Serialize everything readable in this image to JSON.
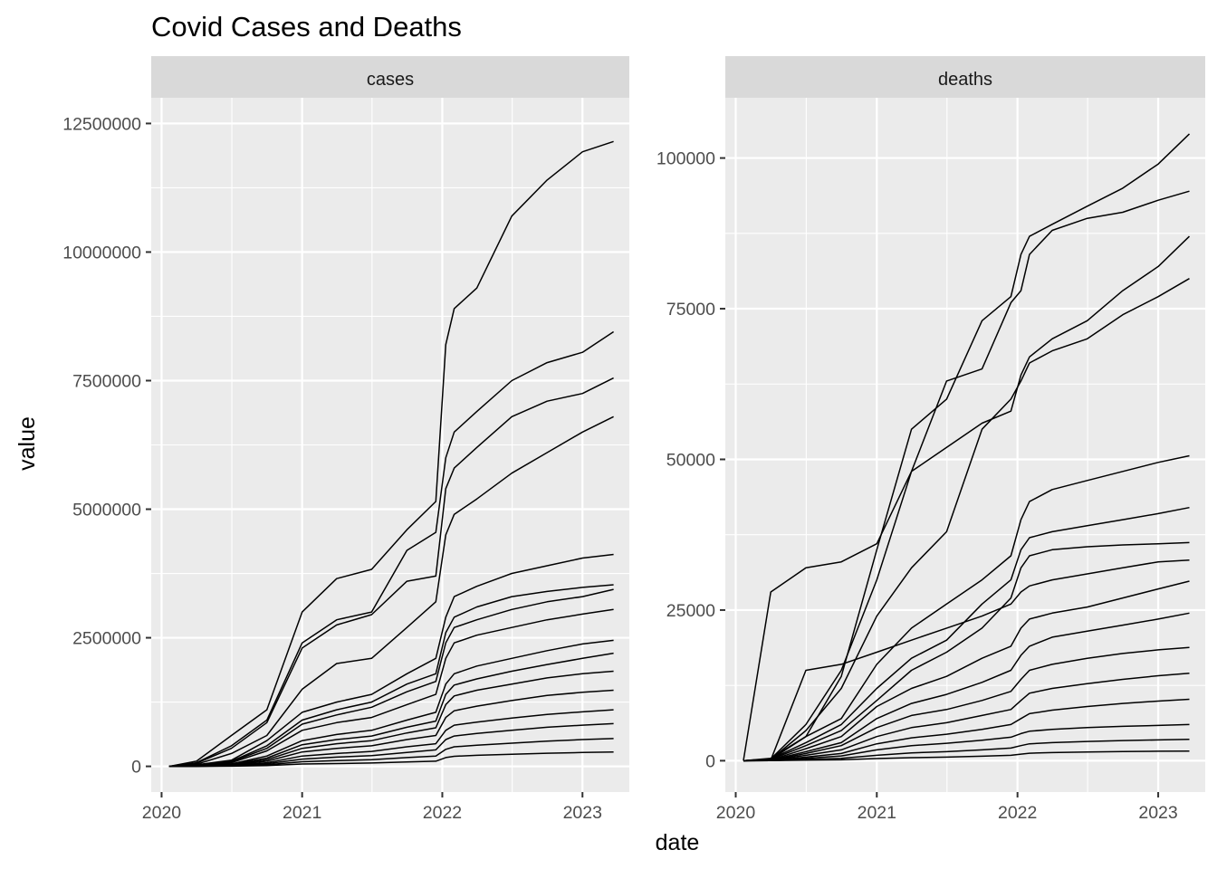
{
  "chart_data": {
    "type": "line",
    "title": "Covid Cases and Deaths",
    "xlabel": "date",
    "ylabel": "value",
    "x_tick_labels": [
      "2020",
      "2021",
      "2022",
      "2023"
    ],
    "grid": true,
    "legend": "none",
    "line_color": "#000000",
    "panel_background": "#ebebeb",
    "strip_background": "#d9d9d9",
    "series_count_note": "many overlapping series per panel; main trajectories estimated",
    "x_dates": [
      "2020-01-21",
      "2020-04-01",
      "2020-07-01",
      "2020-10-01",
      "2021-01-01",
      "2021-04-01",
      "2021-07-01",
      "2021-10-01",
      "2021-12-15",
      "2022-01-10",
      "2022-02-01",
      "2022-04-01",
      "2022-07-01",
      "2022-10-01",
      "2023-01-01",
      "2023-03-23"
    ],
    "panels": [
      {
        "strip": "cases",
        "ylim": [
          -500000,
          13000000
        ],
        "y_ticks": [
          0,
          2500000,
          5000000,
          7500000,
          10000000,
          12500000
        ],
        "y_tick_labels": [
          "0",
          "2500000",
          "5000000",
          "7500000",
          "10000000",
          "12500000"
        ],
        "series": [
          {
            "values": [
              0,
              100000,
              600000,
              1100000,
              3000000,
              3650000,
              3830000,
              4600000,
              5150000,
              8200000,
              8900000,
              9300000,
              10700000,
              11400000,
              11950000,
              12150000
            ]
          },
          {
            "values": [
              0,
              70000,
              400000,
              900000,
              2400000,
              2850000,
              3000000,
              4200000,
              4550000,
              6000000,
              6500000,
              6900000,
              7500000,
              7850000,
              8050000,
              8450000
            ]
          },
          {
            "values": [
              0,
              60000,
              350000,
              850000,
              2300000,
              2750000,
              2950000,
              3600000,
              3700000,
              5400000,
              5800000,
              6200000,
              6800000,
              7100000,
              7250000,
              7550000
            ]
          },
          {
            "values": [
              0,
              40000,
              250000,
              600000,
              1500000,
              2000000,
              2100000,
              2700000,
              3200000,
              4500000,
              4900000,
              5200000,
              5700000,
              6100000,
              6500000,
              6800000
            ]
          },
          {
            "values": [
              0,
              30000,
              120000,
              500000,
              1050000,
              1250000,
              1400000,
              1800000,
              2100000,
              2900000,
              3300000,
              3500000,
              3750000,
              3900000,
              4050000,
              4120000
            ]
          },
          {
            "values": [
              0,
              20000,
              100000,
              400000,
              900000,
              1100000,
              1250000,
              1600000,
              1800000,
              2600000,
              2900000,
              3100000,
              3300000,
              3400000,
              3480000,
              3530000
            ]
          },
          {
            "values": [
              0,
              15000,
              90000,
              350000,
              820000,
              1000000,
              1150000,
              1450000,
              1650000,
              2400000,
              2700000,
              2850000,
              3050000,
              3200000,
              3300000,
              3440000
            ]
          },
          {
            "values": [
              0,
              12000,
              70000,
              300000,
              700000,
              850000,
              950000,
              1200000,
              1400000,
              2100000,
              2400000,
              2550000,
              2700000,
              2850000,
              2960000,
              3050000
            ]
          },
          {
            "values": [
              0,
              8000,
              50000,
              200000,
              500000,
              620000,
              700000,
              900000,
              1050000,
              1600000,
              1800000,
              1950000,
              2100000,
              2250000,
              2380000,
              2450000
            ]
          },
          {
            "values": [
              0,
              6000,
              40000,
              160000,
              420000,
              520000,
              590000,
              760000,
              880000,
              1400000,
              1580000,
              1700000,
              1850000,
              1980000,
              2100000,
              2200000
            ]
          },
          {
            "values": [
              0,
              5000,
              30000,
              130000,
              350000,
              440000,
              500000,
              650000,
              750000,
              1200000,
              1370000,
              1480000,
              1600000,
              1720000,
              1800000,
              1850000
            ]
          },
          {
            "values": [
              0,
              4000,
              25000,
              100000,
              280000,
              350000,
              400000,
              520000,
              600000,
              950000,
              1080000,
              1170000,
              1280000,
              1380000,
              1440000,
              1480000
            ]
          },
          {
            "values": [
              0,
              3000,
              18000,
              70000,
              200000,
              250000,
              290000,
              380000,
              440000,
              700000,
              800000,
              860000,
              940000,
              1010000,
              1060000,
              1100000
            ]
          },
          {
            "values": [
              0,
              2000,
              12000,
              50000,
              140000,
              180000,
              210000,
              270000,
              320000,
              520000,
              590000,
              640000,
              700000,
              760000,
              800000,
              830000
            ]
          },
          {
            "values": [
              0,
              1200,
              8000,
              30000,
              90000,
              110000,
              130000,
              170000,
              200000,
              330000,
              380000,
              410000,
              450000,
              490000,
              520000,
              540000
            ]
          },
          {
            "values": [
              0,
              600,
              4000,
              15000,
              45000,
              55000,
              65000,
              85000,
              100000,
              170000,
              195000,
              215000,
              235000,
              255000,
              270000,
              280000
            ]
          }
        ]
      },
      {
        "strip": "deaths",
        "ylim": [
          -5200,
          110000
        ],
        "y_ticks": [
          0,
          25000,
          50000,
          75000,
          100000
        ],
        "y_tick_labels": [
          "0",
          "25000",
          "50000",
          "75000",
          "100000"
        ],
        "series": [
          {
            "values": [
              0,
              200,
              4000,
              14000,
              35000,
              55000,
              60000,
              73000,
              77000,
              84000,
              87000,
              89000,
              92000,
              95000,
              99000,
              104000
            ]
          },
          {
            "values": [
              0,
              300,
              6000,
              15000,
              30000,
              48000,
              52000,
              56000,
              58000,
              64000,
              67000,
              70000,
              73000,
              78000,
              82000,
              87000
            ]
          },
          {
            "values": [
              0,
              28000,
              32000,
              33000,
              36000,
              48000,
              63000,
              65000,
              76000,
              78000,
              84000,
              88000,
              90000,
              91000,
              93000,
              94500
            ]
          },
          {
            "values": [
              0,
              200,
              5000,
              12000,
              24000,
              32000,
              38000,
              55000,
              60000,
              63000,
              66000,
              68000,
              70000,
              74000,
              77000,
              80000
            ]
          },
          {
            "values": [
              0,
              400,
              4000,
              7000,
              16000,
              22000,
              26000,
              30000,
              34000,
              40000,
              43000,
              45000,
              46500,
              48000,
              49500,
              50600
            ]
          },
          {
            "values": [
              0,
              300,
              3000,
              6000,
              12000,
              17000,
              20000,
              26000,
              30000,
              35000,
              37000,
              38000,
              39000,
              40000,
              41000,
              42000
            ]
          },
          {
            "values": [
              0,
              200,
              2500,
              5000,
              10000,
              15000,
              18000,
              22000,
              27000,
              32000,
              34000,
              35000,
              35500,
              35800,
              36000,
              36200
            ]
          },
          {
            "values": [
              0,
              100,
              15000,
              16000,
              18000,
              20000,
              22000,
              24000,
              26000,
              28000,
              29000,
              30000,
              31000,
              32000,
              33000,
              33300
            ]
          },
          {
            "values": [
              0,
              100,
              2000,
              4000,
              9000,
              12000,
              14000,
              17000,
              19000,
              22000,
              23500,
              24500,
              25500,
              27000,
              28500,
              29800
            ]
          },
          {
            "values": [
              0,
              80,
              1500,
              3000,
              7000,
              9500,
              11000,
              13000,
              15000,
              17500,
              19000,
              20500,
              21500,
              22500,
              23500,
              24500
            ]
          },
          {
            "values": [
              0,
              60,
              1200,
              2500,
              5500,
              7500,
              8500,
              10000,
              11500,
              13500,
              15000,
              16000,
              17000,
              17800,
              18400,
              18800
            ]
          },
          {
            "values": [
              0,
              40,
              900,
              1800,
              4000,
              5500,
              6300,
              7500,
              8500,
              10000,
              11200,
              12000,
              12800,
              13500,
              14100,
              14500
            ]
          },
          {
            "values": [
              0,
              30,
              600,
              1200,
              2800,
              3800,
              4400,
              5200,
              6000,
              7000,
              7800,
              8400,
              9000,
              9500,
              9900,
              10200
            ]
          },
          {
            "values": [
              0,
              20,
              400,
              800,
              1800,
              2500,
              2900,
              3400,
              3900,
              4500,
              4900,
              5200,
              5500,
              5700,
              5850,
              6000
            ]
          },
          {
            "values": [
              0,
              10,
              200,
              400,
              900,
              1300,
              1500,
              1800,
              2100,
              2500,
              2800,
              3000,
              3200,
              3350,
              3450,
              3550
            ]
          },
          {
            "values": [
              0,
              5,
              80,
              150,
              350,
              500,
              600,
              750,
              900,
              1100,
              1250,
              1350,
              1450,
              1520,
              1570,
              1600
            ]
          }
        ]
      }
    ]
  }
}
